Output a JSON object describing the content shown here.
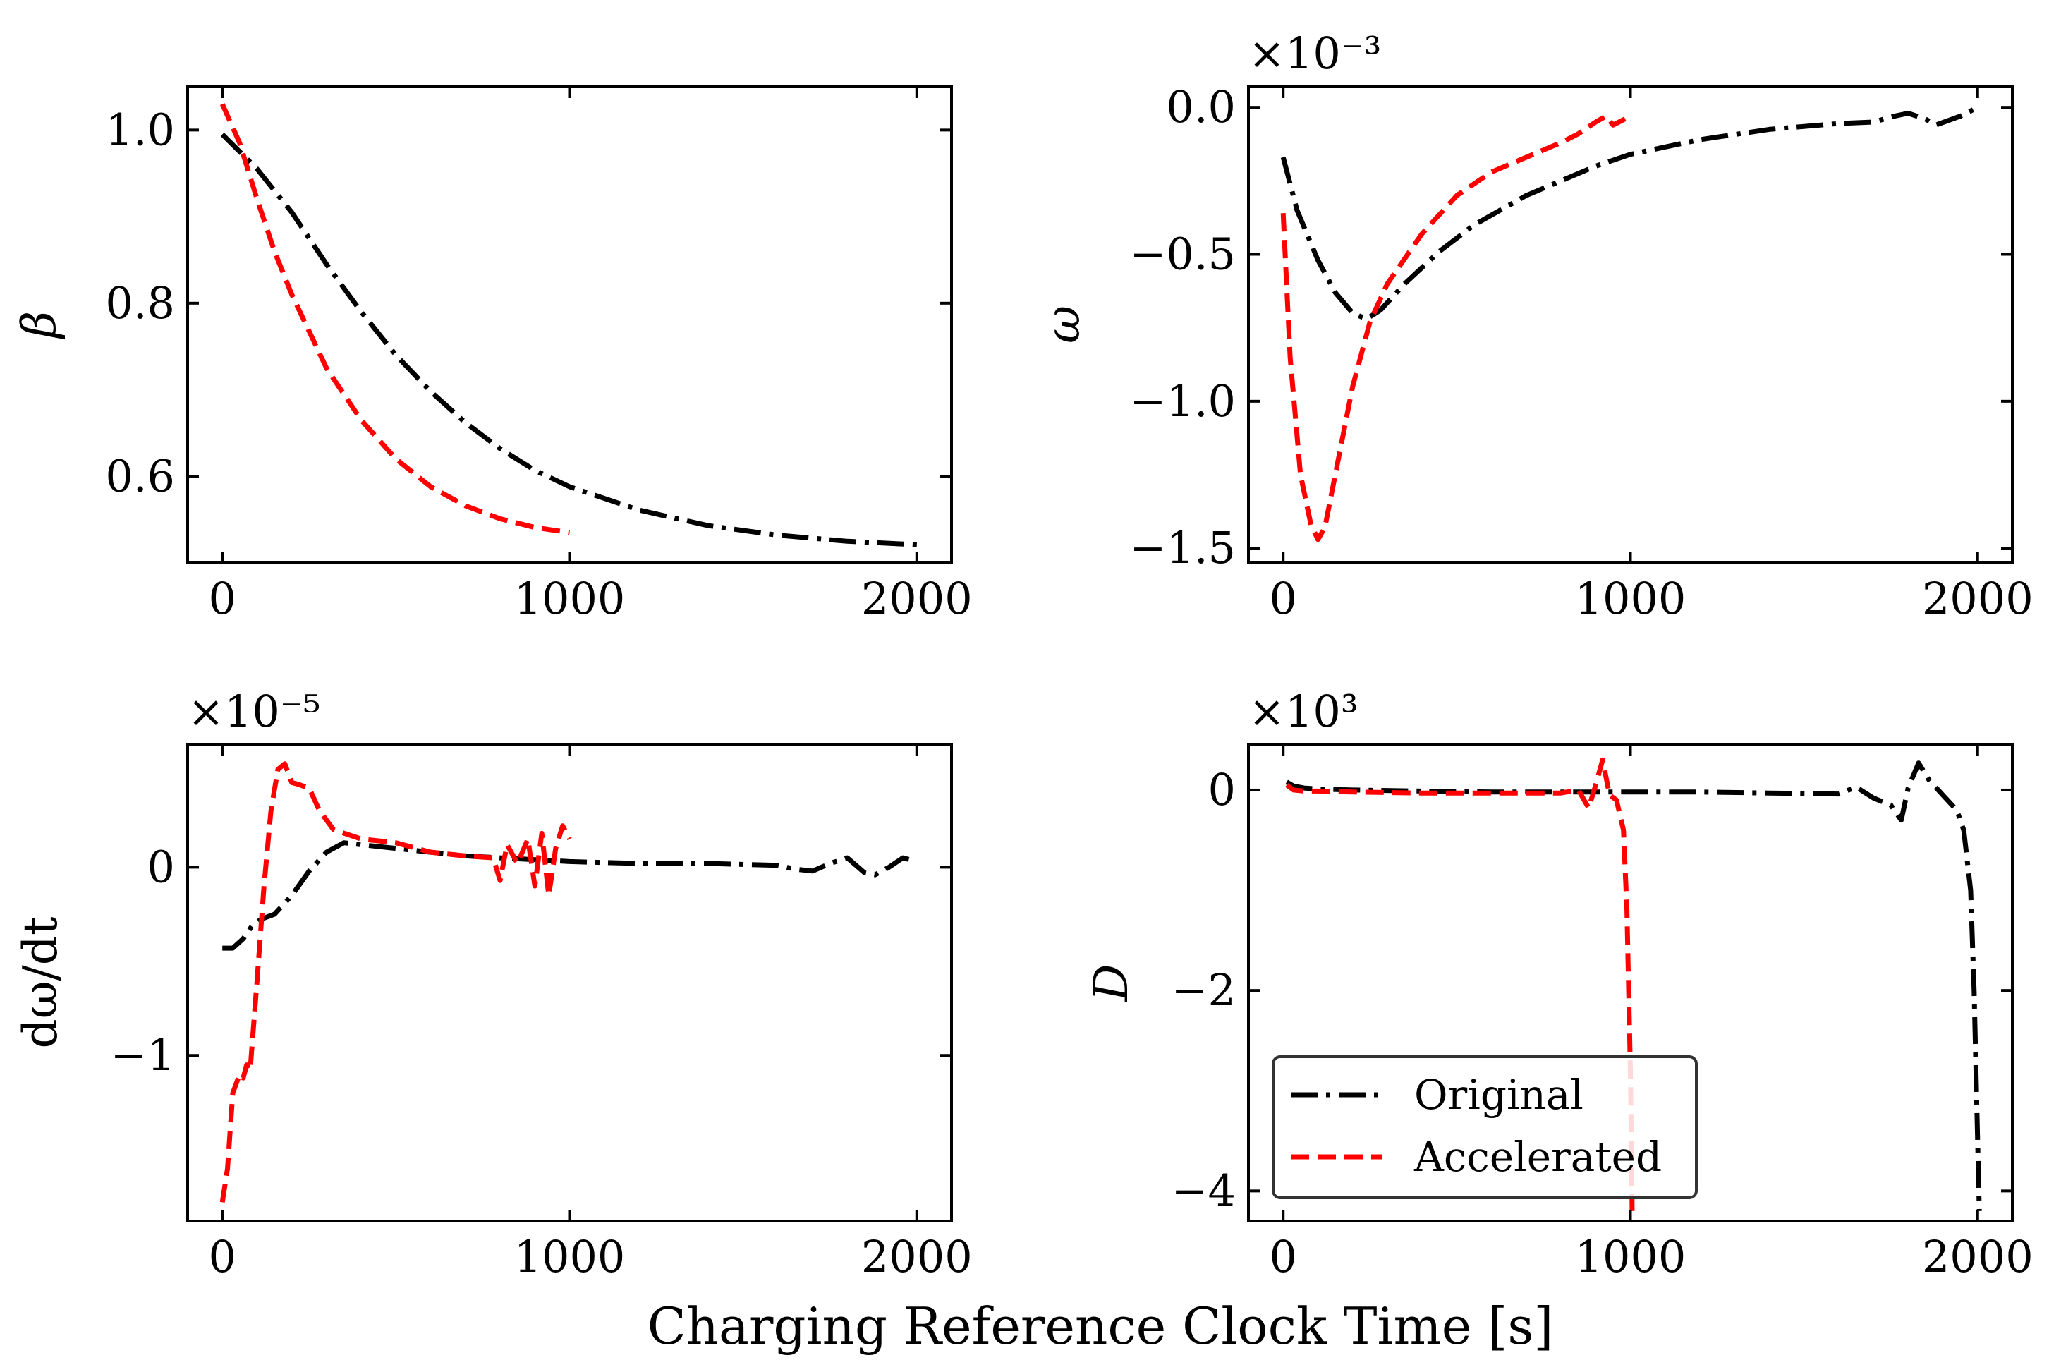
{
  "figure": {
    "xlabel": "Charging Reference Clock Time [s]"
  },
  "legend": {
    "location": "lower-left of bottom-right panel",
    "entries": [
      {
        "label": "Original",
        "color": "#000000",
        "style": "dashdot"
      },
      {
        "label": "Accelerated",
        "color": "#ff0000",
        "style": "dashed"
      }
    ]
  },
  "chart_data": [
    {
      "type": "line",
      "id": "beta",
      "ylabel": "β",
      "multiplier": "",
      "xlim": [
        -100,
        2100
      ],
      "ylim": [
        0.5,
        1.05
      ],
      "xticks": [
        0,
        1000,
        2000
      ],
      "xtick_labels": [
        "0",
        "1000",
        "2000"
      ],
      "yticks": [
        0.6,
        0.8,
        1.0
      ],
      "ytick_labels": [
        "0.6",
        "0.8",
        "1.0"
      ],
      "series": [
        {
          "name": "Original",
          "color": "#000000",
          "style": "dashdot",
          "x": [
            0,
            100,
            200,
            300,
            400,
            500,
            600,
            700,
            800,
            900,
            1000,
            1200,
            1400,
            1600,
            1800,
            2000
          ],
          "y": [
            0.995,
            0.955,
            0.905,
            0.845,
            0.79,
            0.74,
            0.698,
            0.662,
            0.632,
            0.607,
            0.588,
            0.561,
            0.543,
            0.532,
            0.525,
            0.521
          ]
        },
        {
          "name": "Accelerated",
          "color": "#ff0000",
          "style": "dashed",
          "x": [
            0,
            50,
            100,
            150,
            200,
            300,
            400,
            500,
            600,
            700,
            800,
            900,
            1000
          ],
          "y": [
            1.03,
            0.985,
            0.92,
            0.86,
            0.81,
            0.725,
            0.665,
            0.62,
            0.588,
            0.566,
            0.551,
            0.541,
            0.535
          ]
        }
      ]
    },
    {
      "type": "line",
      "id": "omega",
      "ylabel": "ω",
      "multiplier": "×10⁻³",
      "xlim": [
        -100,
        2100
      ],
      "ylim": [
        -1.55,
        0.07
      ],
      "xticks": [
        0,
        1000,
        2000
      ],
      "xtick_labels": [
        "0",
        "1000",
        "2000"
      ],
      "yticks": [
        -1.5,
        -1.0,
        -0.5,
        0.0
      ],
      "ytick_labels": [
        "−1.5",
        "−1.0",
        "−0.5",
        "0.0"
      ],
      "series": [
        {
          "name": "Original",
          "color": "#000000",
          "style": "dashdot",
          "x": [
            0,
            40,
            100,
            150,
            200,
            240,
            280,
            350,
            450,
            550,
            700,
            900,
            1000,
            1200,
            1400,
            1600,
            1700,
            1760,
            1800,
            1850,
            1880,
            1950,
            2000
          ],
          "y": [
            -0.17,
            -0.35,
            -0.52,
            -0.63,
            -0.7,
            -0.72,
            -0.69,
            -0.6,
            -0.49,
            -0.4,
            -0.3,
            -0.2,
            -0.16,
            -0.11,
            -0.075,
            -0.055,
            -0.05,
            -0.03,
            -0.02,
            -0.04,
            -0.06,
            -0.03,
            0.0
          ]
        },
        {
          "name": "Accelerated",
          "color": "#ff0000",
          "style": "dashed",
          "x": [
            0,
            20,
            50,
            80,
            100,
            120,
            150,
            200,
            250,
            300,
            400,
            500,
            600,
            700,
            800,
            850,
            900,
            930,
            950,
            1000
          ],
          "y": [
            -0.36,
            -0.85,
            -1.25,
            -1.42,
            -1.47,
            -1.43,
            -1.25,
            -0.95,
            -0.73,
            -0.6,
            -0.43,
            -0.3,
            -0.22,
            -0.17,
            -0.12,
            -0.09,
            -0.05,
            -0.03,
            -0.06,
            -0.03
          ]
        }
      ]
    },
    {
      "type": "line",
      "id": "domega_dt",
      "ylabel": "dω/dt",
      "multiplier": "×10⁻⁵",
      "xlim": [
        -100,
        2100
      ],
      "ylim": [
        -1.88,
        0.65
      ],
      "xticks": [
        0,
        1000,
        2000
      ],
      "xtick_labels": [
        "0",
        "1000",
        "2000"
      ],
      "yticks": [
        -1,
        0
      ],
      "ytick_labels": [
        "−1",
        "0"
      ],
      "series": [
        {
          "name": "Original",
          "color": "#000000",
          "style": "dashdot",
          "x": [
            0,
            30,
            60,
            90,
            120,
            150,
            200,
            250,
            300,
            350,
            400,
            500,
            600,
            700,
            800,
            900,
            1000,
            1200,
            1400,
            1600,
            1650,
            1700,
            1750,
            1800,
            1850,
            1880,
            1920,
            1960,
            2000
          ],
          "y": [
            -0.43,
            -0.43,
            -0.38,
            -0.3,
            -0.27,
            -0.25,
            -0.15,
            -0.02,
            0.08,
            0.13,
            0.12,
            0.1,
            0.08,
            0.06,
            0.05,
            0.04,
            0.03,
            0.02,
            0.02,
            0.01,
            -0.01,
            -0.02,
            0.02,
            0.05,
            -0.03,
            -0.04,
            0.0,
            0.05,
            0.03
          ]
        },
        {
          "name": "Accelerated",
          "color": "#ff0000",
          "style": "dashed",
          "x": [
            0,
            15,
            30,
            50,
            60,
            70,
            80,
            100,
            120,
            140,
            160,
            180,
            200,
            220,
            250,
            280,
            320,
            400,
            500,
            600,
            700,
            780,
            800,
            820,
            850,
            880,
            900,
            920,
            940,
            960,
            980,
            1000
          ],
          "y": [
            -1.78,
            -1.6,
            -1.2,
            -1.1,
            -1.12,
            -1.05,
            -1.08,
            -0.6,
            -0.1,
            0.3,
            0.52,
            0.55,
            0.45,
            0.44,
            0.42,
            0.3,
            0.2,
            0.15,
            0.13,
            0.08,
            0.06,
            0.05,
            -0.07,
            0.12,
            0.02,
            0.15,
            -0.1,
            0.18,
            -0.15,
            0.1,
            0.22,
            0.15
          ]
        }
      ]
    },
    {
      "type": "line",
      "id": "D",
      "ylabel": "D",
      "multiplier": "×10³",
      "xlim": [
        -100,
        2100
      ],
      "ylim": [
        -4.3,
        0.45
      ],
      "xticks": [
        0,
        1000,
        2000
      ],
      "xtick_labels": [
        "0",
        "1000",
        "2000"
      ],
      "yticks": [
        -4,
        -2,
        0
      ],
      "ytick_labels": [
        "−4",
        "−2",
        "0"
      ],
      "series": [
        {
          "name": "Original",
          "color": "#000000",
          "style": "dashdot",
          "x": [
            10,
            30,
            60,
            100,
            200,
            400,
            600,
            800,
            1000,
            1200,
            1400,
            1600,
            1650,
            1700,
            1750,
            1780,
            1800,
            1830,
            1860,
            1900,
            1940,
            1960,
            1980,
            1990,
            2000,
            2005
          ],
          "y": [
            0.08,
            0.04,
            0.02,
            0.01,
            0.0,
            -0.01,
            -0.02,
            -0.02,
            -0.02,
            -0.02,
            -0.03,
            -0.04,
            0.03,
            -0.08,
            -0.15,
            -0.3,
            0.02,
            0.27,
            0.1,
            -0.05,
            -0.2,
            -0.4,
            -1.0,
            -2.0,
            -3.5,
            -4.2
          ]
        },
        {
          "name": "Accelerated",
          "color": "#ff0000",
          "style": "dashed",
          "x": [
            10,
            30,
            60,
            100,
            200,
            400,
            600,
            800,
            850,
            880,
            900,
            920,
            940,
            960,
            980,
            990,
            1000,
            1005
          ],
          "y": [
            0.05,
            0.0,
            -0.01,
            -0.01,
            -0.02,
            -0.03,
            -0.03,
            -0.03,
            0.0,
            -0.18,
            0.05,
            0.3,
            -0.05,
            -0.1,
            -0.4,
            -1.2,
            -2.8,
            -4.2
          ]
        }
      ]
    }
  ]
}
